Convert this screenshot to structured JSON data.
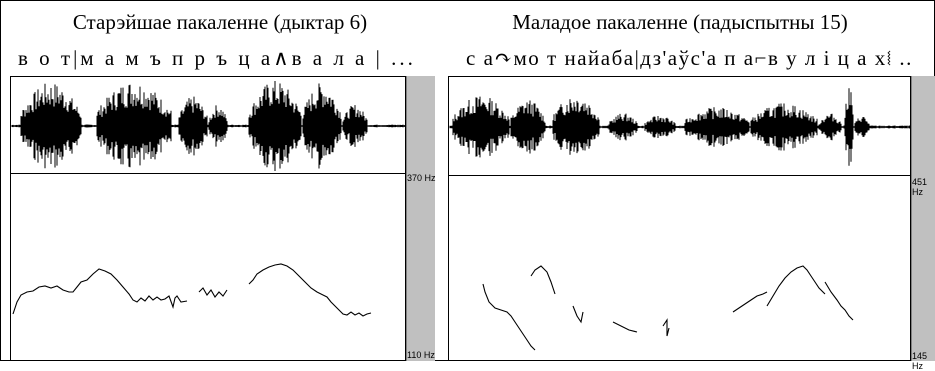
{
  "panels": [
    {
      "title": "Старэйшае пакаленне (дыктар 6)",
      "transcription": "в о т|м а м ъ п р ъ ц а∧в а л а | ...",
      "hz_top": "370 Hz",
      "hz_bottom": "110 Hz"
    },
    {
      "title": "Маладое пакаленне (падыспытны 15)",
      "transcription": "с а↷мо т найаба|дз'аўс'а   п а⌐в у л і ц а х⧙  ..",
      "hz_top": "451 Hz",
      "hz_bottom": "145 Hz"
    }
  ]
}
